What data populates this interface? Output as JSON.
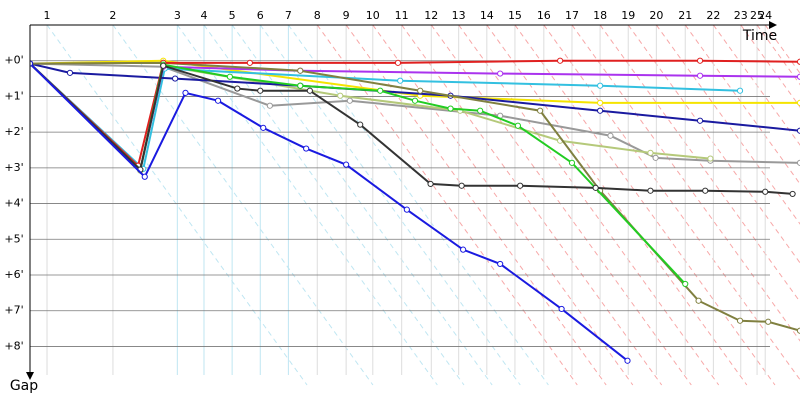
{
  "chart_data": {
    "type": "line",
    "x_label": "Time",
    "y_label": "Gap",
    "xlim": [
      0,
      104
    ],
    "ylim": [
      -1,
      8.8
    ],
    "xticks": [
      {
        "value": 2.3,
        "label": "1"
      },
      {
        "value": 11.2,
        "label": "2"
      },
      {
        "value": 19.9,
        "label": "3"
      },
      {
        "value": 23.5,
        "label": "4"
      },
      {
        "value": 27.3,
        "label": "5"
      },
      {
        "value": 31.1,
        "label": "6"
      },
      {
        "value": 34.9,
        "label": "7"
      },
      {
        "value": 38.8,
        "label": "8"
      },
      {
        "value": 42.7,
        "label": "9"
      },
      {
        "value": 46.3,
        "label": "10"
      },
      {
        "value": 50.2,
        "label": "11"
      },
      {
        "value": 54.2,
        "label": "12"
      },
      {
        "value": 57.9,
        "label": "13"
      },
      {
        "value": 61.7,
        "label": "14"
      },
      {
        "value": 65.5,
        "label": "15"
      },
      {
        "value": 69.4,
        "label": "16"
      },
      {
        "value": 73.2,
        "label": "17"
      },
      {
        "value": 77.0,
        "label": "18"
      },
      {
        "value": 80.8,
        "label": "19"
      },
      {
        "value": 84.6,
        "label": "20"
      },
      {
        "value": 88.5,
        "label": "21"
      },
      {
        "value": 92.3,
        "label": "22"
      },
      {
        "value": 96.0,
        "label": "23"
      },
      {
        "value": 98.2,
        "label": "25"
      },
      {
        "value": 99.3,
        "label": "24"
      }
    ],
    "yticks": [
      {
        "value": 0,
        "label": "+0'"
      },
      {
        "value": 1,
        "label": "+1'"
      },
      {
        "value": 2,
        "label": "+2'"
      },
      {
        "value": 3,
        "label": "+3'"
      },
      {
        "value": 4,
        "label": "+4'"
      },
      {
        "value": 5,
        "label": "+5'"
      },
      {
        "value": 6,
        "label": "+6'"
      },
      {
        "value": 7,
        "label": "+7'"
      },
      {
        "value": 8,
        "label": "+8'"
      }
    ],
    "grid": true,
    "series": [
      {
        "color": "#f5e400",
        "x": [
          0,
          18,
          52.7,
          77,
          104
        ],
        "values": [
          0.08,
          0,
          0.98,
          1.18,
          1.18
        ]
      },
      {
        "color": "#999999",
        "x": [
          0,
          18,
          32.4,
          43.2,
          63.5,
          78.4,
          84.5,
          91.9,
          104
        ],
        "values": [
          0.08,
          0.17,
          1.26,
          1.12,
          1.54,
          2.1,
          2.72,
          2.8,
          2.86
        ]
      },
      {
        "color": "#b5c97a",
        "x": [
          0,
          14.9,
          18,
          41.9,
          58.1,
          71.6,
          83.8,
          91.9
        ],
        "values": [
          0.08,
          3.08,
          0.14,
          0.98,
          1.4,
          2.24,
          2.58,
          2.74
        ]
      },
      {
        "color": "#33c0e0",
        "x": [
          0,
          15.3,
          18.2,
          50,
          77,
          95.9
        ],
        "values": [
          0.08,
          3.03,
          0.22,
          0.56,
          0.7,
          0.84
        ]
      },
      {
        "color": "#aa33ee",
        "x": [
          0,
          14.9,
          18,
          36.5,
          63.5,
          90.5,
          104
        ],
        "values": [
          0.08,
          3.05,
          0.17,
          0.28,
          0.36,
          0.42,
          0.45
        ]
      },
      {
        "color": "#1a1aa0",
        "x": [
          0,
          5.4,
          19.6,
          36.5,
          56.8,
          77,
          90.5,
          104
        ],
        "values": [
          0.08,
          0.34,
          0.5,
          0.7,
          0.98,
          1.4,
          1.68,
          1.96
        ]
      },
      {
        "color": "#808040",
        "x": [
          0,
          18,
          36.5,
          52.7,
          68.9,
          77,
          90.3,
          95.9,
          99.7,
          104
        ],
        "values": [
          0.08,
          0.06,
          0.28,
          0.84,
          1.4,
          3.64,
          6.72,
          7.28,
          7.31,
          7.56
        ]
      },
      {
        "color": "#e02020",
        "x": [
          0,
          14.6,
          18,
          29.7,
          49.7,
          71.6,
          90.5,
          104
        ],
        "values": [
          0.08,
          2.94,
          0.06,
          0.06,
          0.06,
          0,
          0,
          0.03
        ]
      },
      {
        "color": "#22cc22",
        "x": [
          0,
          14.9,
          17.97,
          27,
          36.5,
          47.3,
          52,
          56.8,
          60.8,
          65.9,
          73.2,
          88.5
        ],
        "values": [
          0.08,
          3.05,
          0.11,
          0.45,
          0.7,
          0.84,
          1.12,
          1.34,
          1.4,
          1.82,
          2.86,
          6.25
        ]
      },
      {
        "color": "#333333",
        "x": [
          0,
          14.9,
          18,
          28,
          31.1,
          37.8,
          44.6,
          54.1,
          58.3,
          66.2,
          76.4,
          83.8,
          91.2,
          99.3,
          103
        ],
        "values": [
          0.08,
          3.05,
          0.14,
          0.78,
          0.84,
          0.84,
          1.79,
          3.45,
          3.5,
          3.5,
          3.56,
          3.64,
          3.64,
          3.67,
          3.73
        ]
      },
      {
        "color": "#1a1ae0",
        "x": [
          0,
          15.5,
          21,
          25.4,
          31.5,
          37.3,
          42.7,
          50.9,
          58.5,
          63.5,
          71.8,
          80.7
        ],
        "values": [
          0.08,
          3.25,
          0.9,
          1.12,
          1.88,
          2.46,
          2.91,
          4.17,
          5.29,
          5.69,
          6.95,
          8.4
        ]
      }
    ]
  }
}
